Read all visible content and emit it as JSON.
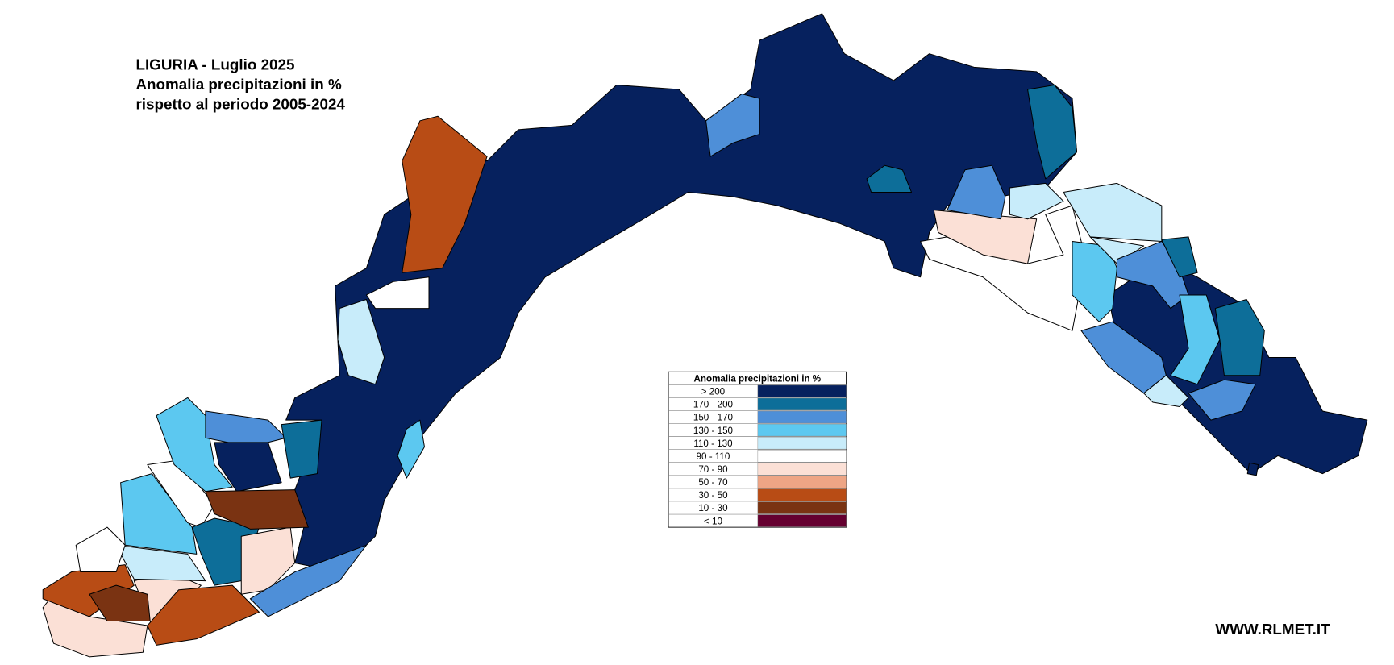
{
  "title_lines": [
    "LIGURIA - Luglio 2025",
    "Anomalia precipitazioni in %",
    "rispetto al periodo 2005-2024"
  ],
  "legend": {
    "title": "Anomalia precipitazioni in %",
    "classes": [
      {
        "label": "> 200",
        "color": "#06215e"
      },
      {
        "label": "170 - 200",
        "color": "#0d6e99"
      },
      {
        "label": "150 - 170",
        "color": "#4e8fd8"
      },
      {
        "label": "130 - 150",
        "color": "#5cc8f0"
      },
      {
        "label": "110 - 130",
        "color": "#c8ecfa"
      },
      {
        "label": "90 - 110",
        "color": "#ffffff"
      },
      {
        "label": "70 - 90",
        "color": "#fbe0d6"
      },
      {
        "label": "50 - 70",
        "color": "#eea585"
      },
      {
        "label": "30 - 50",
        "color": "#b84c15"
      },
      {
        "label": "10 - 30",
        "color": "#7a3312"
      },
      {
        "label": "< 10",
        "color": "#650030"
      }
    ]
  },
  "footer": "WWW.RLMET.IT"
}
